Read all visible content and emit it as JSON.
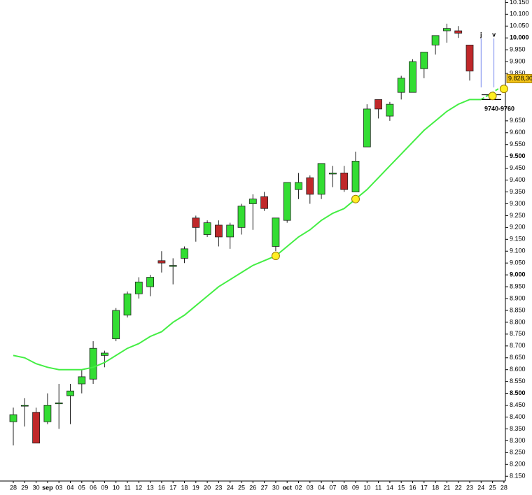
{
  "chart_data": {
    "type": "candlestick",
    "categories": [
      "28",
      "29",
      "30",
      "sep",
      "03",
      "04",
      "05",
      "06",
      "09",
      "10",
      "11",
      "12",
      "13",
      "16",
      "17",
      "18",
      "19",
      "20",
      "23",
      "24",
      "25",
      "26",
      "27",
      "30",
      "oct",
      "02",
      "03",
      "04",
      "07",
      "08",
      "09",
      "10",
      "11",
      "14",
      "15",
      "16",
      "17",
      "18",
      "21",
      "22",
      "23",
      "24",
      "25",
      "28"
    ],
    "open": [
      8.38,
      8.45,
      8.42,
      8.38,
      8.46,
      8.49,
      8.54,
      8.56,
      8.66,
      8.73,
      8.83,
      8.92,
      8.95,
      9.06,
      9.04,
      9.07,
      9.24,
      9.17,
      9.21,
      9.16,
      9.2,
      9.3,
      9.33,
      9.12,
      9.23,
      9.36,
      9.41,
      9.34,
      9.43,
      9.43,
      9.35,
      9.54,
      9.74,
      9.67,
      9.77,
      9.77,
      9.87,
      9.97,
      10.03,
      10.03,
      9.97,
      null,
      null,
      null
    ],
    "high": [
      8.44,
      8.48,
      8.44,
      8.5,
      8.54,
      8.54,
      8.6,
      8.72,
      8.68,
      8.86,
      8.93,
      8.99,
      9.0,
      9.1,
      9.07,
      9.12,
      9.25,
      9.23,
      9.23,
      9.22,
      9.3,
      9.34,
      9.35,
      9.24,
      9.39,
      9.43,
      9.42,
      9.47,
      9.46,
      9.46,
      9.52,
      9.72,
      9.74,
      9.73,
      9.84,
      9.91,
      9.94,
      10.01,
      10.06,
      10.05,
      9.97,
      null,
      null,
      null
    ],
    "low": [
      8.28,
      8.36,
      8.29,
      8.37,
      8.35,
      8.37,
      8.5,
      8.54,
      8.61,
      8.72,
      8.82,
      8.9,
      8.91,
      9.01,
      8.96,
      9.05,
      9.14,
      9.16,
      9.12,
      9.11,
      9.17,
      9.19,
      9.27,
      9.1,
      9.22,
      9.32,
      9.3,
      9.32,
      9.37,
      9.35,
      9.35,
      9.54,
      9.66,
      9.65,
      9.74,
      9.77,
      9.83,
      9.93,
      9.98,
      10.0,
      9.82,
      null,
      null,
      null
    ],
    "close": [
      8.41,
      8.45,
      8.29,
      8.45,
      8.46,
      8.51,
      8.57,
      8.69,
      8.67,
      8.85,
      8.92,
      8.97,
      8.99,
      9.05,
      9.04,
      9.11,
      9.2,
      9.22,
      9.16,
      9.21,
      9.29,
      9.32,
      9.28,
      9.24,
      9.39,
      9.39,
      9.34,
      9.47,
      9.43,
      9.36,
      9.48,
      9.7,
      9.7,
      9.72,
      9.83,
      9.9,
      9.94,
      10.01,
      10.04,
      10.02,
      9.86,
      null,
      null,
      null
    ],
    "up_color": "#33dd33",
    "down_color": "#c0282a",
    "line_values": [
      8.66,
      8.65,
      8.625,
      8.61,
      8.6,
      8.6,
      8.6,
      8.61,
      8.63,
      8.66,
      8.69,
      8.71,
      8.74,
      8.76,
      8.8,
      8.83,
      8.87,
      8.91,
      8.95,
      8.98,
      9.01,
      9.04,
      9.06,
      9.08,
      9.12,
      9.16,
      9.19,
      9.23,
      9.26,
      9.28,
      9.32,
      9.36,
      9.41,
      9.46,
      9.51,
      9.56,
      9.61,
      9.65,
      9.69,
      9.72,
      9.74,
      9.74,
      null,
      null
    ],
    "projection_values": [
      null,
      null,
      null,
      null,
      null,
      null,
      null,
      null,
      null,
      null,
      null,
      null,
      null,
      null,
      null,
      null,
      null,
      null,
      null,
      null,
      null,
      null,
      null,
      null,
      null,
      null,
      null,
      null,
      null,
      null,
      null,
      null,
      null,
      null,
      null,
      null,
      null,
      null,
      null,
      null,
      null,
      9.74,
      9.77,
      9.8
    ],
    "line_color": "#44ee44",
    "highlights": [
      null,
      null,
      null,
      null,
      null,
      null,
      null,
      null,
      null,
      null,
      null,
      null,
      null,
      null,
      null,
      null,
      null,
      null,
      null,
      null,
      null,
      null,
      null,
      9.08,
      null,
      null,
      null,
      null,
      null,
      null,
      9.32,
      null,
      null,
      null,
      null,
      null,
      null,
      null,
      null,
      null,
      null,
      null,
      9.755,
      9.785
    ],
    "highlight_color": "#ffee22",
    "annotations": [
      {
        "text": "j",
        "index": 41
      },
      {
        "text": "v",
        "index": 42
      }
    ],
    "last_price": {
      "value": 9.8283,
      "label": "9.828,30"
    },
    "range": {
      "label": "9740-9760",
      "values": [
        9.74,
        9.76
      ]
    },
    "ylim": [
      8.13,
      10.16
    ],
    "yticks": [
      {
        "value": 10.15,
        "label": "10.150"
      },
      {
        "value": 10.1,
        "label": "10.100"
      },
      {
        "value": 10.05,
        "label": "10.050"
      },
      {
        "value": 10,
        "label": "10.000"
      },
      {
        "value": 9.95,
        "label": "9.950"
      },
      {
        "value": 9.9,
        "label": "9.900"
      },
      {
        "value": 9.85,
        "label": "9.850"
      },
      {
        "value": 9.65,
        "label": "9.650"
      },
      {
        "value": 9.6,
        "label": "9.600"
      },
      {
        "value": 9.55,
        "label": "9.550"
      },
      {
        "value": 9.5,
        "label": "9.500"
      },
      {
        "value": 9.45,
        "label": "9.450"
      },
      {
        "value": 9.4,
        "label": "9.400"
      },
      {
        "value": 9.35,
        "label": "9.350"
      },
      {
        "value": 9.3,
        "label": "9.300"
      },
      {
        "value": 9.25,
        "label": "9.250"
      },
      {
        "value": 9.2,
        "label": "9.200"
      },
      {
        "value": 9.15,
        "label": "9.150"
      },
      {
        "value": 9.1,
        "label": "9.100"
      },
      {
        "value": 9.05,
        "label": "9.050"
      },
      {
        "value": 9,
        "label": "9.000"
      },
      {
        "value": 8.95,
        "label": "8.950"
      },
      {
        "value": 8.9,
        "label": "8.900"
      },
      {
        "value": 8.85,
        "label": "8.850"
      },
      {
        "value": 8.8,
        "label": "8.800"
      },
      {
        "value": 8.75,
        "label": "8.750"
      },
      {
        "value": 8.7,
        "label": "8.700"
      },
      {
        "value": 8.65,
        "label": "8.650"
      },
      {
        "value": 8.6,
        "label": "8.600"
      },
      {
        "value": 8.55,
        "label": "8.550"
      },
      {
        "value": 8.5,
        "label": "8.500"
      },
      {
        "value": 8.45,
        "label": "8.450"
      },
      {
        "value": 8.4,
        "label": "8.400"
      },
      {
        "value": 8.35,
        "label": "8.350"
      },
      {
        "value": 8.3,
        "label": "8.300"
      },
      {
        "value": 8.25,
        "label": "8.250"
      },
      {
        "value": 8.2,
        "label": "8.200"
      },
      {
        "value": 8.15,
        "label": "8.150"
      }
    ]
  }
}
